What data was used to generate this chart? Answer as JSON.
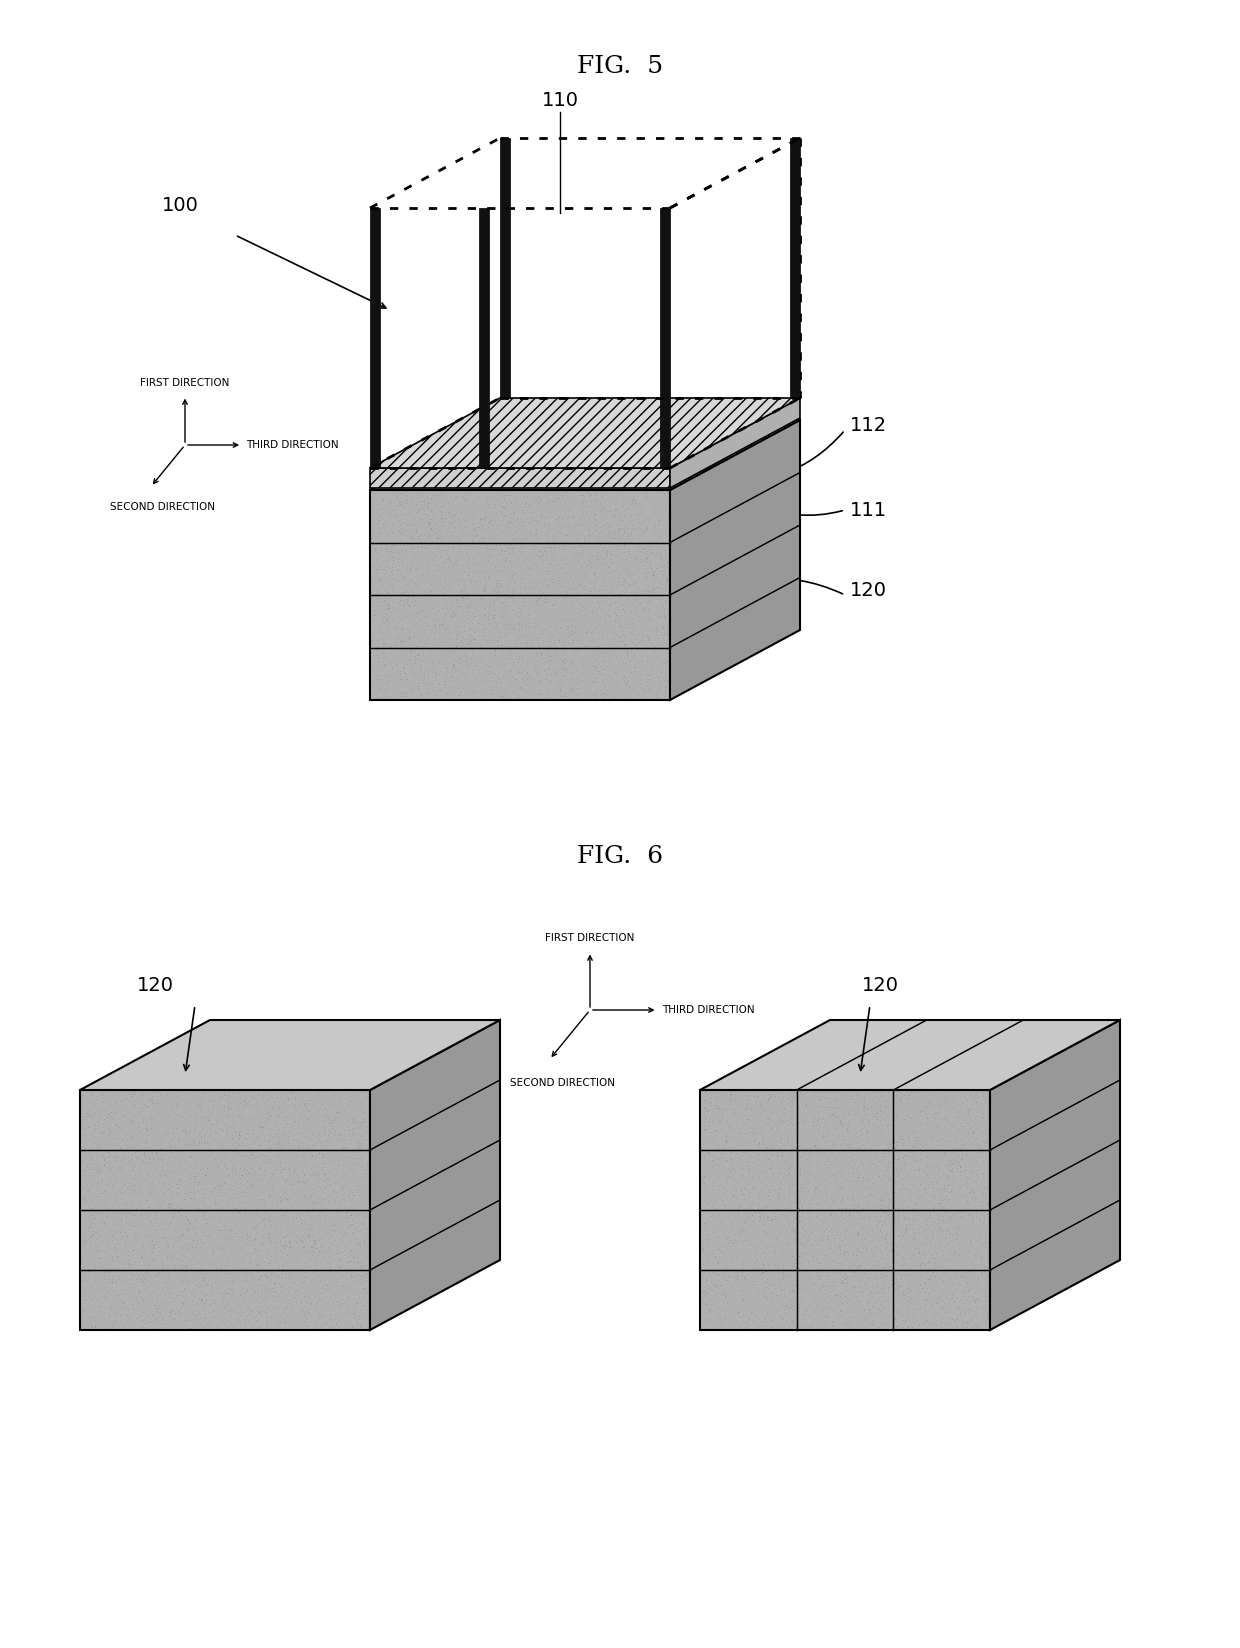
{
  "fig5_title": "FIG.  5",
  "fig6_title": "FIG.  6",
  "bg_color": "#ffffff",
  "line_color": "#000000",
  "gray_face": "#b8b8b8",
  "gray_side": "#a0a0a0",
  "gray_top": "#cecece",
  "gray_dark_face": "#9a9a9a",
  "first_dir_label": "FIRST DIRECTION",
  "second_dir_label": "SECOND DIRECTION",
  "third_dir_label": "THIRD DIRECTION"
}
